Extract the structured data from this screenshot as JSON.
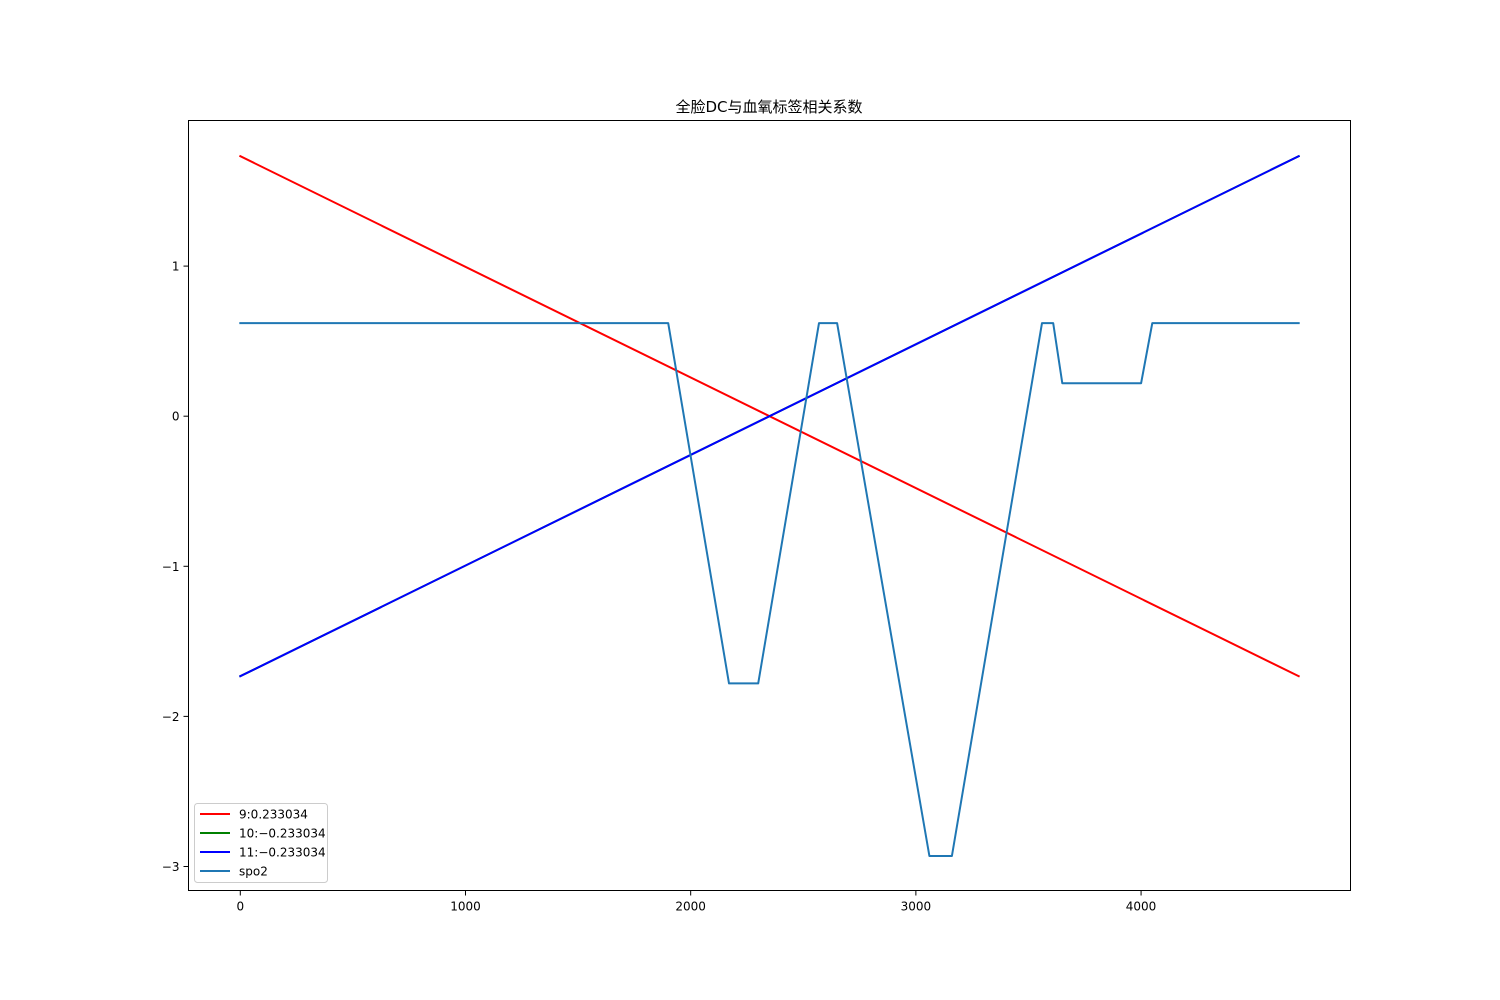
{
  "chart_data": {
    "type": "line",
    "title": "全脸DC与血氧标签相关系数",
    "xlabel": "",
    "ylabel": "",
    "xlim": [
      -230,
      4930
    ],
    "ylim": [
      -3.16,
      1.97
    ],
    "xticks": [
      0,
      1000,
      2000,
      3000,
      4000
    ],
    "yticks": [
      -3,
      -2,
      -1,
      0,
      1
    ],
    "xtick_labels": [
      "0",
      "1000",
      "2000",
      "3000",
      "4000"
    ],
    "ytick_labels": [
      "−3",
      "−2",
      "−1",
      "0",
      "1"
    ],
    "grid": false,
    "legend_position": "lower-left",
    "series": [
      {
        "name": "9:0.233034",
        "color": "#ff0000",
        "x": [
          0,
          4700
        ],
        "y": [
          1.732,
          -1.732
        ]
      },
      {
        "name": "10:−0.233034",
        "color": "#008000",
        "x": [
          0,
          4700
        ],
        "y": [
          -1.732,
          1.732
        ]
      },
      {
        "name": "11:−0.233034",
        "color": "#0000ff",
        "x": [
          0,
          4700
        ],
        "y": [
          -1.732,
          1.732
        ]
      },
      {
        "name": "spo2",
        "color": "#1f77b4",
        "x": [
          0,
          1900,
          2170,
          2300,
          2570,
          2650,
          3060,
          3160,
          3560,
          3610,
          3650,
          4000,
          4050,
          4700
        ],
        "y": [
          0.62,
          0.62,
          -1.78,
          -1.78,
          0.62,
          0.62,
          -2.93,
          -2.93,
          0.62,
          0.62,
          0.22,
          0.22,
          0.62,
          0.62
        ]
      }
    ]
  }
}
